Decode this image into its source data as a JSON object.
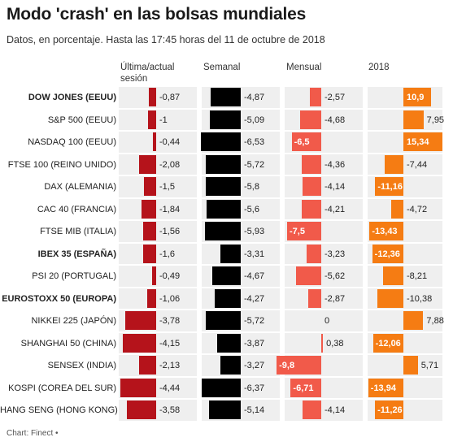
{
  "title": "Modo 'crash' en las bolsas mundiales",
  "subtitle": "Datos, en porcentaje. Hasta las 17:45 horas del 11 de octubre de 2018",
  "source": "Chart: Finect •",
  "colors": {
    "col1": "#b5131b",
    "col2": "#000000",
    "col3": "#f15a4a",
    "col4": "#f57c13",
    "cellbg": "#efefef"
  },
  "chart_data": {
    "type": "table",
    "columns": [
      "Última/actual sesión",
      "Semanal",
      "Mensual",
      "2018"
    ],
    "rows": [
      {
        "name": "DOW JONES (EEUU)",
        "bold": true,
        "values": [
          -0.87,
          -4.87,
          -2.57,
          10.9
        ],
        "labels": [
          "-0,87",
          "-4,87",
          "-2,57",
          "10,9"
        ]
      },
      {
        "name": "S&P 500 (EEUU)",
        "bold": false,
        "values": [
          -1,
          -5.09,
          -4.68,
          7.95
        ],
        "labels": [
          "-1",
          "-5,09",
          "-4,68",
          "7,95"
        ]
      },
      {
        "name": "NASDAQ 100 (EEUU)",
        "bold": false,
        "values": [
          -0.44,
          -6.53,
          -6.5,
          15.34
        ],
        "labels": [
          "-0,44",
          "-6,53",
          "-6,5",
          "15,34"
        ]
      },
      {
        "name": "FTSE 100 (REINO UNIDO)",
        "bold": false,
        "values": [
          -2.08,
          -5.72,
          -4.36,
          -7.44
        ],
        "labels": [
          "-2,08",
          "-5,72",
          "-4,36",
          "-7,44"
        ]
      },
      {
        "name": "DAX (ALEMANIA)",
        "bold": false,
        "values": [
          -1.5,
          -5.8,
          -4.14,
          -11.16
        ],
        "labels": [
          "-1,5",
          "-5,8",
          "-4,14",
          "-11,16"
        ]
      },
      {
        "name": "CAC 40 (FRANCIA)",
        "bold": false,
        "values": [
          -1.84,
          -5.6,
          -4.21,
          -4.72
        ],
        "labels": [
          "-1,84",
          "-5,6",
          "-4,21",
          "-4,72"
        ]
      },
      {
        "name": "FTSE MIB (ITALIA)",
        "bold": false,
        "values": [
          -1.56,
          -5.93,
          -7.5,
          -13.43
        ],
        "labels": [
          "-1,56",
          "-5,93",
          "-7,5",
          "-13,43"
        ]
      },
      {
        "name": "IBEX 35 (ESPAÑA)",
        "bold": true,
        "values": [
          -1.6,
          -3.31,
          -3.23,
          -12.36
        ],
        "labels": [
          "-1,6",
          "-3,31",
          "-3,23",
          "-12,36"
        ]
      },
      {
        "name": "PSI 20 (PORTUGAL)",
        "bold": false,
        "values": [
          -0.49,
          -4.67,
          -5.62,
          -8.21
        ],
        "labels": [
          "-0,49",
          "-4,67",
          "-5,62",
          "-8,21"
        ]
      },
      {
        "name": "EUROSTOXX 50 (EUROPA)",
        "bold": true,
        "values": [
          -1.06,
          -4.27,
          -2.87,
          -10.38
        ],
        "labels": [
          "-1,06",
          "-4,27",
          "-2,87",
          "-10,38"
        ]
      },
      {
        "name": "NIKKEI 225 (JAPÓN)",
        "bold": false,
        "values": [
          -3.78,
          -5.72,
          0,
          7.88
        ],
        "labels": [
          "-3,78",
          "-5,72",
          "0",
          "7,88"
        ]
      },
      {
        "name": "SHANGHAI 50 (CHINA)",
        "bold": false,
        "values": [
          -4.15,
          -3.87,
          0.38,
          -12.06
        ],
        "labels": [
          "-4,15",
          "-3,87",
          "0,38",
          "-12,06"
        ]
      },
      {
        "name": "SENSEX (INDIA)",
        "bold": false,
        "values": [
          -2.13,
          -3.27,
          -9.8,
          5.71
        ],
        "labels": [
          "-2,13",
          "-3,27",
          "-9,8",
          "5,71"
        ]
      },
      {
        "name": "KOSPI (COREA DEL SUR)",
        "bold": false,
        "values": [
          -4.44,
          -6.37,
          -6.71,
          -13.94
        ],
        "labels": [
          "-4,44",
          "-6,37",
          "-6,71",
          "-13,94"
        ]
      },
      {
        "name": "HANG SENG (HONG KONG)",
        "bold": false,
        "values": [
          -3.58,
          -5.14,
          -4.14,
          -11.26
        ],
        "labels": [
          "-3,58",
          "-5,14",
          "-4,14",
          "-11,26"
        ]
      }
    ]
  }
}
